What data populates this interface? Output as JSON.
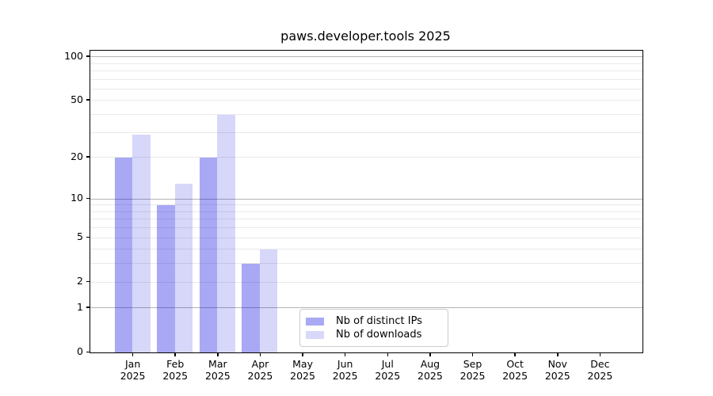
{
  "title": "paws.developer.tools 2025",
  "legend": {
    "items": [
      {
        "label": "Nb of distinct IPs",
        "color": "#a9a9f6"
      },
      {
        "label": "Nb of downloads",
        "color": "#d8d8f9"
      }
    ]
  },
  "chart_data": {
    "type": "bar",
    "title": "paws.developer.tools 2025",
    "categories": [
      "Jan 2025",
      "Feb 2025",
      "Mar 2025",
      "Apr 2025",
      "May 2025",
      "Jun 2025",
      "Jul 2025",
      "Aug 2025",
      "Sep 2025",
      "Oct 2025",
      "Nov 2025",
      "Dec 2025"
    ],
    "x_axis": {
      "months": [
        "Jan",
        "Feb",
        "Mar",
        "Apr",
        "May",
        "Jun",
        "Jul",
        "Aug",
        "Sep",
        "Oct",
        "Nov",
        "Dec"
      ],
      "year": "2025"
    },
    "series": [
      {
        "name": "Nb of distinct IPs",
        "color_solid": "#a9a9f6",
        "color_bar": "rgba(0,0,224,0.34)",
        "values": [
          20,
          9,
          20,
          3,
          null,
          null,
          null,
          null,
          null,
          null,
          null,
          null
        ]
      },
      {
        "name": "Nb of downloads",
        "color_solid": "#d8d8f9",
        "color_bar": "rgba(0,0,224,0.155)",
        "values": [
          29,
          13,
          40,
          4,
          null,
          null,
          null,
          null,
          null,
          null,
          null,
          null
        ]
      }
    ],
    "y_axis": {
      "scale": "log10(1+y)",
      "ticks": [
        0,
        1,
        2,
        5,
        10,
        20,
        50,
        100
      ],
      "ylim": [
        0,
        109
      ],
      "major_gridlines": [
        1,
        10,
        100
      ],
      "minor_gridlines": [
        2,
        3,
        4,
        5,
        6,
        7,
        8,
        9,
        20,
        30,
        40,
        50,
        60,
        70,
        80,
        90
      ]
    },
    "grid": true,
    "legend_position": "lower center",
    "colors": {
      "major_gridline": "#b3b3b3",
      "minor_gridline": "#e9e9e9",
      "axis": "#000000"
    }
  }
}
